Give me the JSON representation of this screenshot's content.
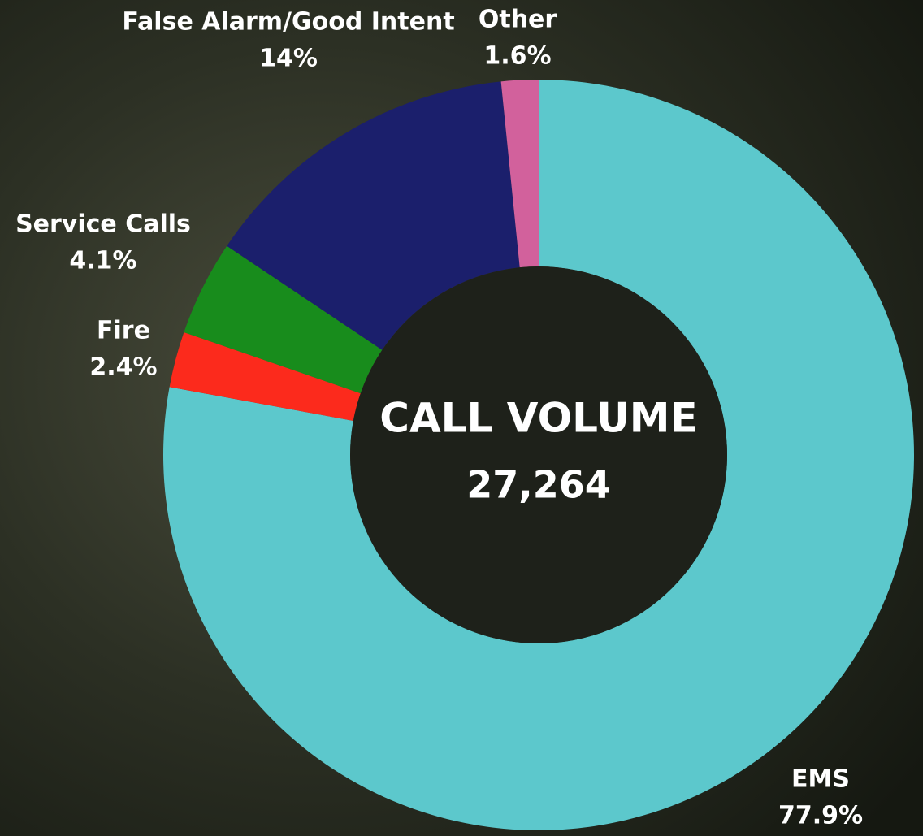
{
  "chart_data": {
    "type": "donut",
    "categories": [
      "EMS",
      "Fire",
      "Service Calls",
      "False Alarm/Good Intent",
      "Other"
    ],
    "values": [
      77.9,
      2.4,
      4.1,
      14,
      1.6
    ],
    "value_labels": [
      "77.9%",
      "2.4%",
      "4.1%",
      "14%",
      "1.6%"
    ],
    "colors": [
      "#5cc8cc",
      "#fc2a1c",
      "#188c1c",
      "#1b1f6c",
      "#d2619c"
    ],
    "center_title": "CALL VOLUME",
    "total": {
      "value": 27264,
      "label": "27,264"
    }
  }
}
